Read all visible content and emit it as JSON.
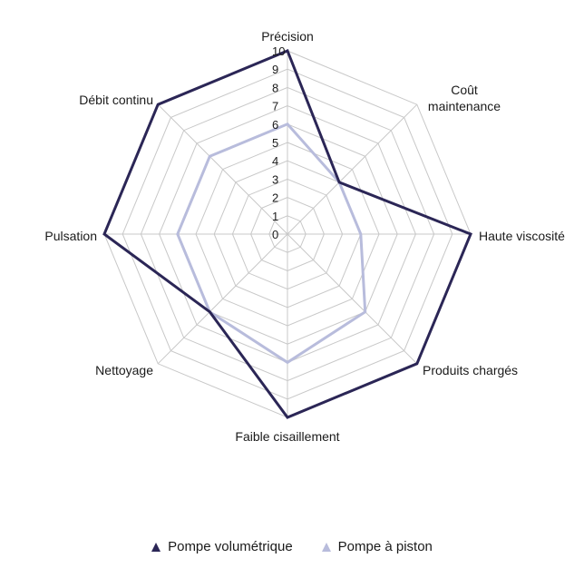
{
  "chart_data": {
    "type": "radar",
    "categories": [
      "Précision",
      "Coût maintenance",
      "Haute viscosité",
      "Produits chargés",
      "Faible cisaillement",
      "Nettoyage",
      "Pulsation",
      "Débit continu"
    ],
    "category_lines": [
      [
        "Précision"
      ],
      [
        "Coût",
        "maintenance"
      ],
      [
        "Haute viscosité"
      ],
      [
        "Produits chargés"
      ],
      [
        "Faible cisaillement"
      ],
      [
        "Nettoyage"
      ],
      [
        "Pulsation"
      ],
      [
        "Débit continu"
      ]
    ],
    "range": [
      0,
      10
    ],
    "ticks": [
      "0",
      "1",
      "2",
      "3",
      "4",
      "5",
      "6",
      "7",
      "8",
      "9",
      "10"
    ],
    "grid": true,
    "legend_position": "bottom",
    "series": [
      {
        "name": "Pompe volumétrique",
        "color": "#2b2656",
        "values": [
          10,
          4,
          10,
          10,
          10,
          6,
          10,
          10
        ]
      },
      {
        "name": "Pompe à piston",
        "color": "#b8bcdc",
        "values": [
          6,
          4,
          4,
          6,
          7,
          6,
          6,
          6
        ]
      }
    ]
  }
}
